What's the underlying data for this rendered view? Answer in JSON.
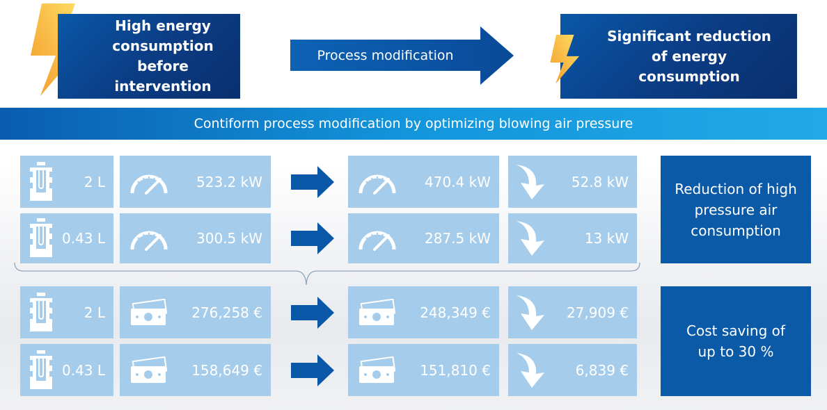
{
  "top": {
    "before": "High energy consumption before intervention",
    "process": "Process modification",
    "after": "Significant reduction of energy consumption"
  },
  "banner": "Contiform process modification by optimizing blowing air pressure",
  "rows": [
    {
      "size": "2 L",
      "before": "523.2 kW",
      "after": "470.4 kW",
      "saving": "52.8 kW",
      "icon": "gauge-icon"
    },
    {
      "size": "0.43 L",
      "before": "300.5 kW",
      "after": "287.5 kW",
      "saving": "13 kW",
      "icon": "gauge-icon"
    },
    {
      "size": "2 L",
      "before": "276,258 €",
      "after": "248,349 €",
      "saving": "27,909 €",
      "icon": "money-icon"
    },
    {
      "size": "0.43 L",
      "before": "158,649 €",
      "after": "151,810 €",
      "saving": "6,839 €",
      "icon": "money-icon"
    }
  ],
  "summary": {
    "air": "Reduction of high pressure air consumption",
    "cost": "Cost saving of up to 30 %"
  },
  "colors": {
    "tile": "#a5cdeb",
    "dark": "#0b3d85",
    "accent": "#0b5aa8",
    "bolt": "#f7b733"
  }
}
